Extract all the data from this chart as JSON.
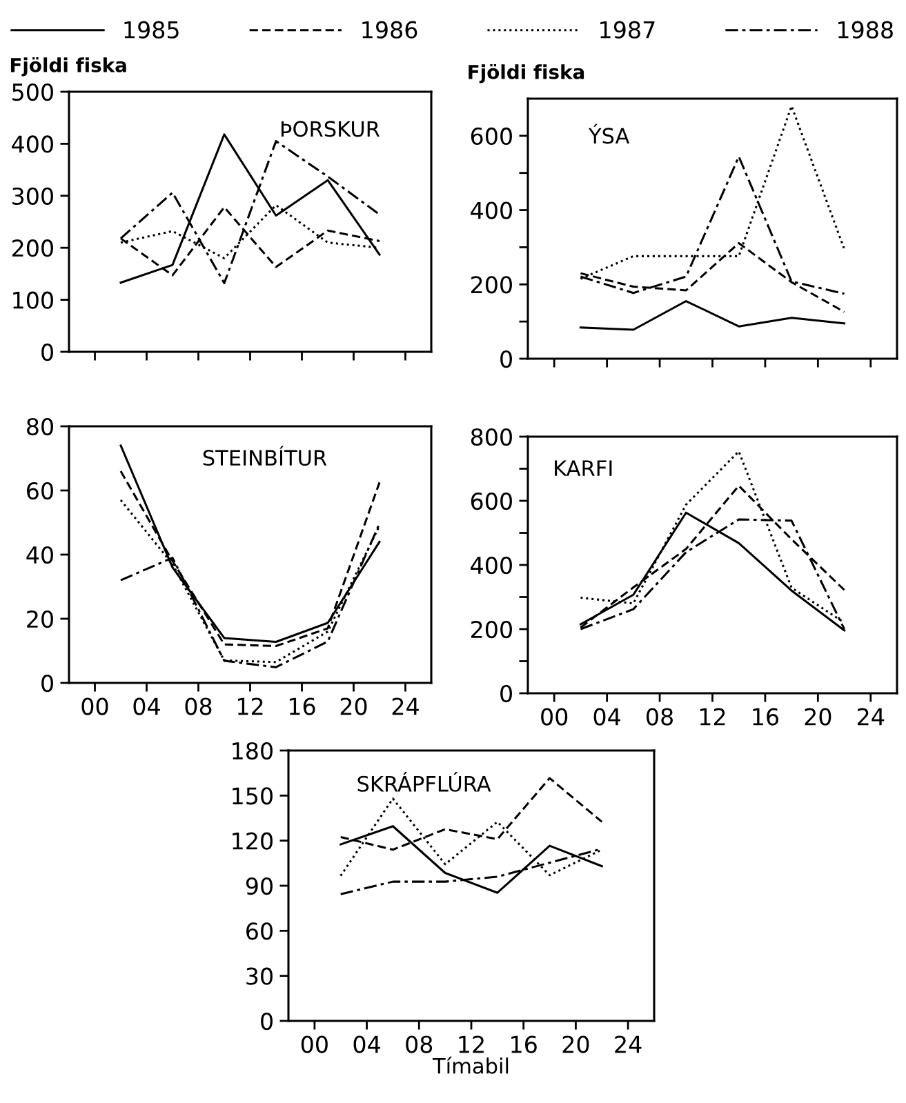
{
  "chart_data": [
    {
      "type": "line",
      "title": "ÞORSKUR",
      "ylabel": "Fjöldi fiska",
      "legend": "top",
      "tick_labels": "y",
      "x": [
        2,
        6,
        10,
        14,
        18,
        22
      ],
      "xlim": [
        -2,
        26
      ],
      "xticks": [
        {
          "value": 0,
          "label": null
        },
        {
          "value": 4,
          "label": null
        },
        {
          "value": 8,
          "label": null
        },
        {
          "value": 12,
          "label": null
        },
        {
          "value": 16,
          "label": null
        },
        {
          "value": 20,
          "label": null
        },
        {
          "value": 24,
          "label": null
        }
      ],
      "ylim": [
        0,
        500
      ],
      "yticks": [
        0,
        100,
        200,
        300,
        400,
        500
      ],
      "series": [
        {
          "name": "1985",
          "color": "#000000",
          "line_style": "solid",
          "values": [
            133,
            167,
            418,
            262,
            330,
            187
          ]
        },
        {
          "name": "1986",
          "color": "#000000",
          "line_style": "dashed",
          "values": [
            218,
            147,
            278,
            163,
            233,
            213
          ]
        },
        {
          "name": "1987",
          "color": "#000000",
          "line_style": "dotted",
          "values": [
            210,
            232,
            180,
            282,
            210,
            200
          ]
        },
        {
          "name": "1988",
          "color": "#000000",
          "line_style": "dashdot",
          "values": [
            218,
            306,
            132,
            405,
            337,
            264
          ]
        }
      ]
    },
    {
      "type": "line",
      "title": "ÝSA",
      "ylabel": "Fjöldi fiska",
      "tick_labels": "y",
      "x": [
        2,
        6,
        10,
        14,
        18,
        22
      ],
      "xlim": [
        -2,
        26
      ],
      "xticks": [
        {
          "value": 0,
          "label": null
        },
        {
          "value": 4,
          "label": null
        },
        {
          "value": 8,
          "label": null
        },
        {
          "value": 12,
          "label": null
        },
        {
          "value": 16,
          "label": null
        },
        {
          "value": 20,
          "label": null
        },
        {
          "value": 24,
          "label": null
        }
      ],
      "ylim": [
        0,
        700
      ],
      "yticks": [
        0,
        {
          "value": 100,
          "label": null
        },
        200,
        {
          "value": 300,
          "label": null
        },
        400,
        {
          "value": 500,
          "label": null
        },
        600
      ],
      "series": [
        {
          "name": "1985",
          "color": "#000000",
          "line_style": "solid",
          "values": [
            84,
            78,
            155,
            87,
            110,
            95
          ]
        },
        {
          "name": "1986",
          "color": "#000000",
          "line_style": "dashed",
          "values": [
            230,
            194,
            184,
            311,
            206,
            126
          ]
        },
        {
          "name": "1987",
          "color": "#000000",
          "line_style": "dotted",
          "values": [
            215,
            276,
            276,
            276,
            680,
            295
          ]
        },
        {
          "name": "1988",
          "color": "#000000",
          "line_style": "dashdot",
          "values": [
            221,
            177,
            221,
            544,
            208,
            175
          ]
        }
      ]
    },
    {
      "type": "line",
      "title": "STEINBÍTUR",
      "x": [
        2,
        6,
        10,
        14,
        18,
        22
      ],
      "xlim": [
        -2,
        26
      ],
      "xticks": [
        {
          "value": 0,
          "label": "00"
        },
        {
          "value": 4,
          "label": "04"
        },
        {
          "value": 8,
          "label": "08"
        },
        {
          "value": 12,
          "label": "12"
        },
        {
          "value": 16,
          "label": "16"
        },
        {
          "value": 20,
          "label": "20"
        },
        {
          "value": 24,
          "label": "24"
        }
      ],
      "ylim": [
        0,
        80
      ],
      "yticks": [
        0,
        20,
        40,
        60,
        80
      ],
      "series": [
        {
          "name": "1985",
          "color": "#000000",
          "line_style": "solid",
          "values": [
            74,
            36,
            14,
            12.8,
            18.7,
            44
          ]
        },
        {
          "name": "1986",
          "color": "#000000",
          "line_style": "dashed",
          "values": [
            66,
            38,
            12,
            11.5,
            17,
            62.5
          ]
        },
        {
          "name": "1987",
          "color": "#000000",
          "line_style": "dotted",
          "values": [
            57,
            37,
            7,
            6.5,
            16,
            49
          ]
        },
        {
          "name": "1988",
          "color": "#000000",
          "line_style": "dashdot",
          "values": [
            32,
            39,
            6.9,
            4.9,
            12.9,
            49.7
          ]
        }
      ]
    },
    {
      "type": "line",
      "title": "KARFI",
      "x": [
        2,
        6,
        10,
        14,
        18,
        22
      ],
      "xlim": [
        -2,
        26
      ],
      "xticks": [
        {
          "value": 0,
          "label": "00"
        },
        {
          "value": 4,
          "label": "04"
        },
        {
          "value": 8,
          "label": "08"
        },
        {
          "value": 12,
          "label": "12"
        },
        {
          "value": 16,
          "label": "16"
        },
        {
          "value": 20,
          "label": "20"
        },
        {
          "value": 24,
          "label": "24"
        }
      ],
      "ylim": [
        0,
        800
      ],
      "yticks": [
        0,
        {
          "value": 100,
          "label": null
        },
        200,
        {
          "value": 300,
          "label": null
        },
        400,
        {
          "value": 500,
          "label": null
        },
        600,
        {
          "value": 700,
          "label": null
        },
        800
      ],
      "series": [
        {
          "name": "1985",
          "color": "#000000",
          "line_style": "solid",
          "values": [
            215,
            307,
            563,
            468,
            320,
            196
          ]
        },
        {
          "name": "1986",
          "color": "#000000",
          "line_style": "dashed",
          "values": [
            205,
            330,
            450,
            647,
            480,
            322
          ]
        },
        {
          "name": "1987",
          "color": "#000000",
          "line_style": "dotted",
          "values": [
            298,
            280,
            588,
            754,
            329,
            220
          ]
        },
        {
          "name": "1988",
          "color": "#000000",
          "line_style": "dashdot",
          "values": [
            200,
            262,
            440,
            542,
            538,
            200
          ]
        }
      ]
    },
    {
      "type": "line",
      "title": "SKRÁPFLÚRA",
      "xlabel": "Tímabil",
      "x": [
        2,
        6,
        10,
        14,
        18,
        22
      ],
      "xlim": [
        -2,
        26
      ],
      "xticks": [
        {
          "value": 0,
          "label": "00"
        },
        {
          "value": 4,
          "label": "04"
        },
        {
          "value": 8,
          "label": "08"
        },
        {
          "value": 12,
          "label": "12"
        },
        {
          "value": 16,
          "label": "16"
        },
        {
          "value": 20,
          "label": "20"
        },
        {
          "value": 24,
          "label": "24"
        }
      ],
      "ylim": [
        0,
        180
      ],
      "yticks": [
        0,
        30,
        60,
        90,
        120,
        150,
        180
      ],
      "series": [
        {
          "name": "1985",
          "color": "#000000",
          "line_style": "solid",
          "values": [
            117.5,
            129.6,
            98.5,
            85.3,
            116.6,
            103
          ]
        },
        {
          "name": "1986",
          "color": "#000000",
          "line_style": "dashed",
          "values": [
            122.4,
            114,
            127.6,
            121,
            161.6,
            132.5
          ]
        },
        {
          "name": "1987",
          "color": "#000000",
          "line_style": "dotted",
          "values": [
            96.6,
            148,
            104.3,
            132.5,
            97,
            114
          ]
        },
        {
          "name": "1988",
          "color": "#000000",
          "line_style": "dashdot",
          "values": [
            84.4,
            92.7,
            92.7,
            96,
            105.3,
            114.6
          ]
        }
      ]
    }
  ]
}
